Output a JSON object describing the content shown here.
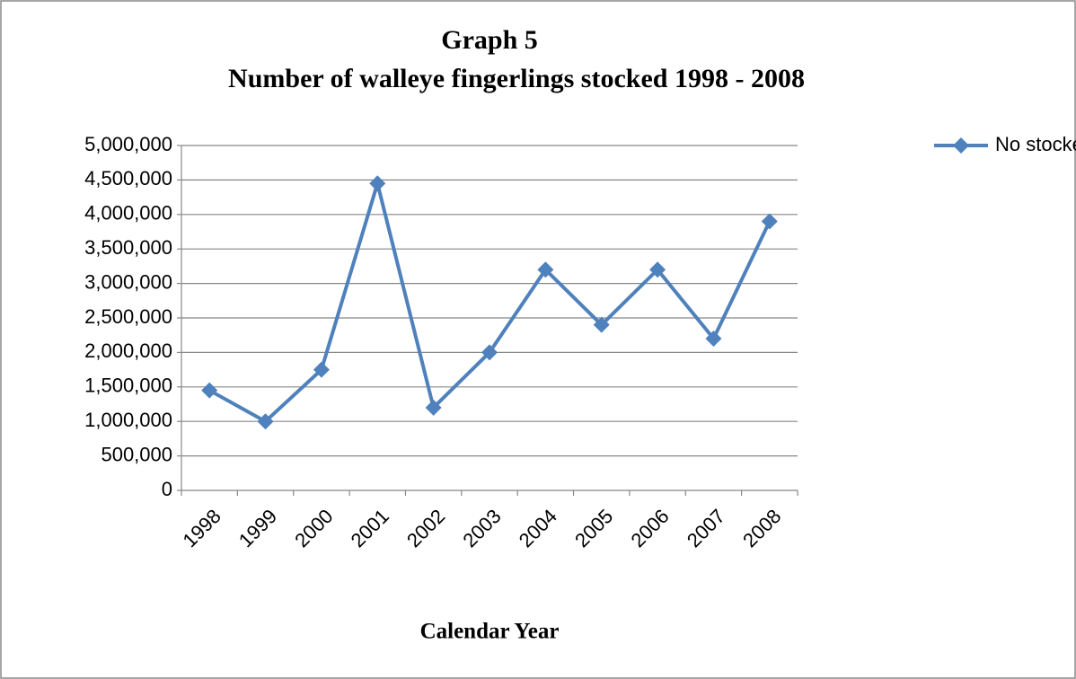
{
  "chart_data": {
    "type": "line",
    "title": "Graph 5",
    "subtitle": "Number of walleye fingerlings stocked 1998 - 2008",
    "x_label": "Calendar Year",
    "categories": [
      "1998",
      "1999",
      "2000",
      "2001",
      "2002",
      "2003",
      "2004",
      "2005",
      "2006",
      "2007",
      "2008"
    ],
    "series": [
      {
        "name": "No stocked",
        "color": "#4f81bd",
        "values": [
          1450000,
          1000000,
          1750000,
          4450000,
          1200000,
          2000000,
          3200000,
          2400000,
          3200000,
          2200000,
          3900000
        ]
      }
    ],
    "ylim": [
      0,
      5000000
    ],
    "yticks": [
      0,
      {
        "value": 500000,
        "label": "500,000"
      },
      {
        "value": 1000000,
        "label": "1,000,000"
      },
      {
        "value": 1500000,
        "label": "1,500,000"
      },
      {
        "value": 2000000,
        "label": "2,000,000"
      },
      {
        "value": 2500000,
        "label": "2,500,000"
      },
      {
        "value": 3000000,
        "label": "3,000,000"
      },
      {
        "value": 3500000,
        "label": "3,500,000"
      },
      {
        "value": 4000000,
        "label": "4,000,000"
      },
      {
        "value": 4500000,
        "label": "4,500,000"
      },
      {
        "value": 5000000,
        "label": "5,000,000"
      }
    ],
    "grid": true,
    "legend": "right"
  }
}
